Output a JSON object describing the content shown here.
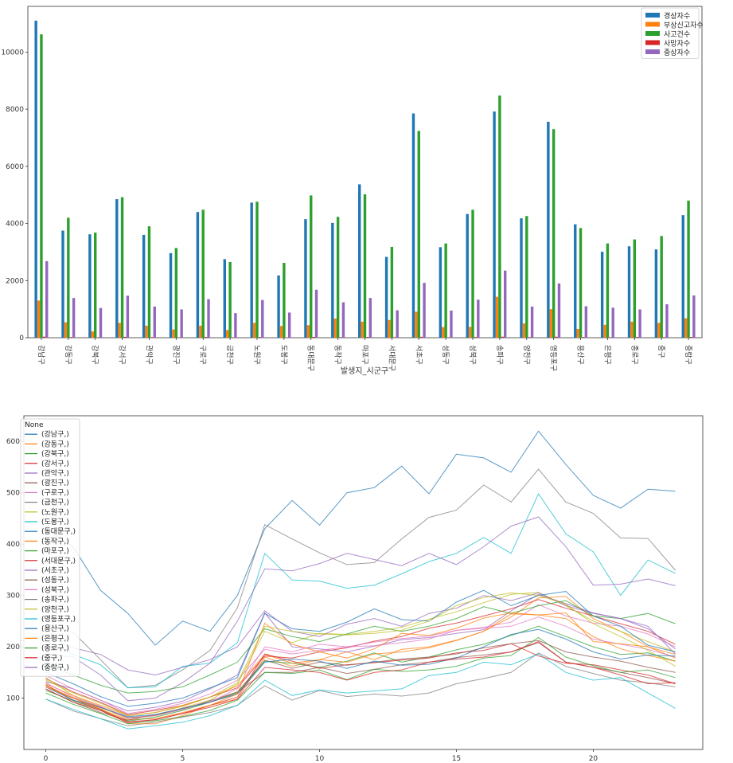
{
  "chart_data": [
    {
      "type": "bar",
      "xlabel": "발생지_시군구",
      "ylabel": "",
      "ylim": [
        0,
        11600
      ],
      "yticks": [
        0,
        2000,
        4000,
        6000,
        8000,
        10000
      ],
      "legend_position": "top-right",
      "categories": [
        "강남구",
        "강동구",
        "강북구",
        "강서구",
        "관악구",
        "광진구",
        "구로구",
        "금천구",
        "노원구",
        "도봉구",
        "동대문구",
        "동작구",
        "마포구",
        "서대문구",
        "서초구",
        "성동구",
        "성북구",
        "송파구",
        "양천구",
        "영등포구",
        "용산구",
        "은평구",
        "종로구",
        "중구",
        "중랑구"
      ],
      "series": [
        {
          "name": "경상자수",
          "color": "#1f77b4",
          "values": [
            11100,
            3750,
            3620,
            4850,
            3600,
            2960,
            4400,
            2750,
            4730,
            2180,
            4150,
            4020,
            5370,
            2830,
            7850,
            3170,
            4330,
            7920,
            4180,
            7560,
            3970,
            3010,
            3200,
            3090,
            4290
          ]
        },
        {
          "name": "부상신고자수",
          "color": "#ff7f0e",
          "values": [
            1300,
            540,
            220,
            520,
            420,
            290,
            420,
            270,
            520,
            410,
            440,
            670,
            560,
            620,
            910,
            370,
            380,
            1430,
            500,
            1000,
            310,
            450,
            560,
            520,
            680
          ]
        },
        {
          "name": "사고건수",
          "color": "#2ca02c",
          "values": [
            10620,
            4200,
            3680,
            4920,
            3900,
            3140,
            4480,
            2650,
            4760,
            2620,
            4980,
            4230,
            5020,
            3180,
            7240,
            3300,
            4480,
            8480,
            4260,
            7300,
            3840,
            3300,
            3440,
            3560,
            4800
          ]
        },
        {
          "name": "사망자수",
          "color": "#d62728",
          "values": [
            35,
            22,
            16,
            30,
            20,
            12,
            26,
            15,
            25,
            14,
            27,
            20,
            26,
            17,
            31,
            15,
            25,
            34,
            20,
            33,
            22,
            18,
            23,
            18,
            26
          ]
        },
        {
          "name": "중상자수",
          "color": "#9467bd",
          "values": [
            2680,
            1390,
            1040,
            1470,
            1090,
            990,
            1350,
            860,
            1320,
            880,
            1680,
            1240,
            1390,
            960,
            1920,
            950,
            1330,
            2350,
            1090,
            1900,
            1100,
            1050,
            990,
            1170,
            1480
          ]
        }
      ]
    },
    {
      "type": "line",
      "legend_title": "None",
      "legend_position": "top-left",
      "xlabel": "",
      "ylabel": "",
      "xlim": [
        -0.8,
        24
      ],
      "ylim": [
        0,
        650
      ],
      "xticks": [
        0,
        5,
        10,
        15,
        20
      ],
      "yticks": [
        100,
        200,
        300,
        400,
        500,
        600
      ],
      "x": [
        0,
        1,
        2,
        3,
        4,
        5,
        6,
        7,
        8,
        9,
        10,
        11,
        12,
        13,
        14,
        15,
        16,
        17,
        18,
        19,
        20,
        21,
        22,
        23
      ],
      "series": [
        {
          "name": "(강남구,)",
          "color": "#1f77b4",
          "values": [
            430,
            395,
            310,
            265,
            203,
            250,
            230,
            300,
            430,
            485,
            437,
            500,
            510,
            552,
            498,
            575,
            568,
            540,
            620,
            555,
            495,
            470,
            507,
            503
          ]
        },
        {
          "name": "(강동구,)",
          "color": "#ff7f0e",
          "values": [
            125,
            100,
            78,
            58,
            60,
            72,
            86,
            98,
            180,
            162,
            175,
            190,
            175,
            195,
            200,
            213,
            230,
            258,
            295,
            298,
            255,
            230,
            200,
            178
          ]
        },
        {
          "name": "(강북구,)",
          "color": "#2ca02c",
          "values": [
            115,
            95,
            76,
            55,
            63,
            76,
            92,
            110,
            172,
            168,
            160,
            172,
            188,
            170,
            180,
            194,
            205,
            222,
            240,
            220,
            200,
            185,
            188,
            172
          ]
        },
        {
          "name": "(강서구,)",
          "color": "#d62728",
          "values": [
            138,
            112,
            92,
            68,
            76,
            86,
            102,
            120,
            182,
            178,
            190,
            198,
            211,
            220,
            236,
            246,
            260,
            274,
            292,
            275,
            260,
            245,
            230,
            205
          ]
        },
        {
          "name": "(관악구,)",
          "color": "#9467bd",
          "values": [
            132,
            118,
            96,
            75,
            82,
            94,
            118,
            145,
            266,
            200,
            196,
            190,
            201,
            214,
            218,
            226,
            233,
            270,
            302,
            284,
            266,
            255,
            240,
            186
          ]
        },
        {
          "name": "(광진구,)",
          "color": "#8c564b",
          "values": [
            118,
            92,
            72,
            57,
            68,
            80,
            92,
            112,
            150,
            150,
            160,
            148,
            156,
            165,
            170,
            179,
            184,
            190,
            208,
            170,
            160,
            150,
            140,
            128
          ]
        },
        {
          "name": "(구로구,)",
          "color": "#e377c2",
          "values": [
            144,
            118,
            96,
            70,
            78,
            90,
            108,
            135,
            195,
            186,
            193,
            200,
            209,
            216,
            221,
            232,
            238,
            248,
            282,
            260,
            246,
            240,
            225,
            200
          ]
        },
        {
          "name": "(금천구,)",
          "color": "#7f7f7f",
          "values": [
            98,
            75,
            60,
            46,
            53,
            63,
            72,
            86,
            124,
            96,
            115,
            103,
            108,
            104,
            110,
            128,
            138,
            150,
            188,
            162,
            148,
            135,
            130,
            122
          ]
        },
        {
          "name": "(노원구,)",
          "color": "#bcbd22",
          "values": [
            140,
            105,
            82,
            60,
            66,
            81,
            96,
            127,
            230,
            208,
            226,
            224,
            230,
            238,
            254,
            268,
            286,
            302,
            306,
            280,
            250,
            230,
            210,
            190
          ]
        },
        {
          "name": "(도봉구,)",
          "color": "#17becf",
          "values": [
            98,
            78,
            60,
            40,
            46,
            53,
            66,
            86,
            135,
            105,
            116,
            110,
            114,
            118,
            144,
            150,
            170,
            165,
            186,
            150,
            135,
            140,
            110,
            80
          ]
        },
        {
          "name": "(동대문구,)",
          "color": "#1f77b4",
          "values": [
            150,
            128,
            103,
            84,
            90,
            100,
            120,
            140,
            265,
            235,
            230,
            248,
            274,
            253,
            250,
            287,
            310,
            280,
            300,
            308,
            260,
            240,
            203,
            190
          ]
        },
        {
          "name": "(동작구,)",
          "color": "#ff7f0e",
          "values": [
            128,
            105,
            86,
            66,
            72,
            84,
            102,
            124,
            185,
            168,
            175,
            170,
            186,
            190,
            198,
            212,
            230,
            264,
            262,
            255,
            220,
            196,
            183,
            172
          ]
        },
        {
          "name": "(마포구,)",
          "color": "#2ca02c",
          "values": [
            165,
            145,
            125,
            110,
            113,
            122,
            145,
            170,
            235,
            220,
            210,
            225,
            240,
            230,
            240,
            255,
            278,
            265,
            280,
            290,
            260,
            255,
            265,
            245
          ]
        },
        {
          "name": "(서대문구,)",
          "color": "#d62728",
          "values": [
            126,
            96,
            78,
            54,
            58,
            70,
            86,
            102,
            186,
            172,
            158,
            165,
            169,
            174,
            178,
            188,
            193,
            206,
            182,
            168,
            165,
            155,
            145,
            128
          ]
        },
        {
          "name": "(서초구,)",
          "color": "#9467bd",
          "values": [
            222,
            198,
            185,
            155,
            145,
            160,
            175,
            200,
            270,
            230,
            220,
            244,
            255,
            240,
            265,
            275,
            300,
            290,
            305,
            280,
            265,
            255,
            235,
            196
          ]
        },
        {
          "name": "(성동구,)",
          "color": "#8c564b",
          "values": [
            122,
            100,
            82,
            62,
            66,
            78,
            95,
            112,
            174,
            158,
            170,
            164,
            170,
            176,
            180,
            186,
            198,
            206,
            212,
            190,
            180,
            172,
            160,
            150
          ]
        },
        {
          "name": "(성북구,)",
          "color": "#e377c2",
          "values": [
            130,
            102,
            84,
            60,
            66,
            78,
            93,
            118,
            200,
            190,
            205,
            200,
            202,
            208,
            215,
            232,
            236,
            240,
            258,
            240,
            215,
            205,
            195,
            180
          ]
        },
        {
          "name": "(송파구,)",
          "color": "#7f7f7f",
          "values": [
            245,
            228,
            175,
            120,
            125,
            155,
            193,
            276,
            438,
            410,
            383,
            360,
            364,
            410,
            452,
            466,
            515,
            482,
            546,
            482,
            460,
            412,
            411,
            349
          ]
        },
        {
          "name": "(양천구,)",
          "color": "#bcbd22",
          "values": [
            135,
            110,
            90,
            66,
            72,
            86,
            102,
            130,
            240,
            230,
            225,
            223,
            226,
            232,
            250,
            280,
            296,
            305,
            300,
            283,
            245,
            220,
            193,
            162
          ]
        },
        {
          "name": "(영등포구,)",
          "color": "#17becf",
          "values": [
            212,
            185,
            165,
            120,
            122,
            162,
            168,
            208,
            382,
            330,
            328,
            314,
            320,
            342,
            366,
            382,
            413,
            382,
            498,
            420,
            385,
            300,
            369,
            343
          ]
        },
        {
          "name": "(용산구,)",
          "color": "#1f77b4",
          "values": [
            122,
            96,
            82,
            64,
            68,
            80,
            92,
            108,
            170,
            176,
            172,
            158,
            172,
            164,
            166,
            178,
            200,
            224,
            234,
            215,
            190,
            176,
            184,
            182
          ]
        },
        {
          "name": "(은평구,)",
          "color": "#ff7f0e",
          "values": [
            122,
            100,
            80,
            50,
            50,
            66,
            86,
            108,
            246,
            205,
            190,
            178,
            196,
            226,
            222,
            236,
            256,
            266,
            262,
            266,
            210,
            206,
            200,
            185
          ]
        },
        {
          "name": "(종로구,)",
          "color": "#2ca02c",
          "values": [
            110,
            88,
            70,
            50,
            56,
            64,
            76,
            96,
            150,
            148,
            155,
            136,
            156,
            152,
            155,
            162,
            178,
            183,
            218,
            180,
            163,
            150,
            155,
            140
          ]
        },
        {
          "name": "(중구,)",
          "color": "#d62728",
          "values": [
            118,
            92,
            76,
            52,
            58,
            70,
            82,
            98,
            160,
            155,
            150,
            135,
            150,
            155,
            170,
            176,
            180,
            190,
            210,
            170,
            160,
            145,
            128,
            130
          ]
        },
        {
          "name": "(중랑구,)",
          "color": "#9467bd",
          "values": [
            185,
            180,
            145,
            95,
            100,
            130,
            168,
            250,
            352,
            348,
            362,
            382,
            370,
            358,
            382,
            360,
            395,
            435,
            453,
            395,
            320,
            322,
            332,
            319
          ]
        }
      ]
    }
  ]
}
